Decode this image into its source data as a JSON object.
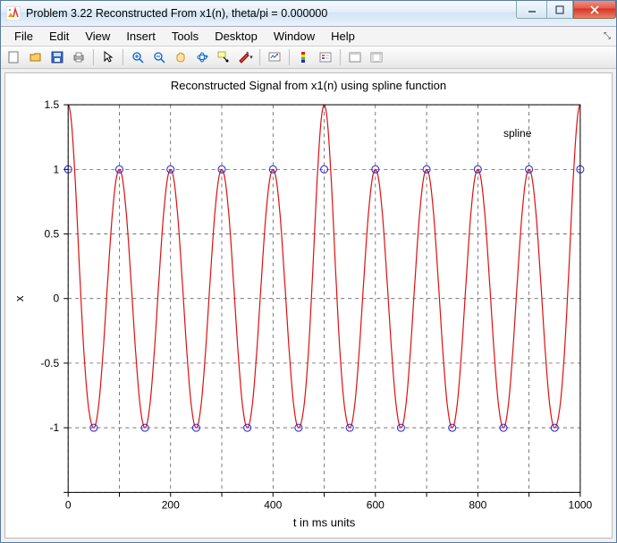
{
  "window": {
    "title": "Problem 3.22 Reconstructed From x1(n), theta/pi = 0.000000"
  },
  "menubar": {
    "items": [
      "File",
      "Edit",
      "View",
      "Insert",
      "Tools",
      "Desktop",
      "Window",
      "Help"
    ]
  },
  "toolbar": {
    "groups": [
      [
        "new-figure",
        "open",
        "save",
        "print"
      ],
      [
        "pointer"
      ],
      [
        "zoom-in",
        "zoom-out",
        "pan",
        "rotate3d",
        "data-cursor",
        "brush"
      ],
      [
        "link",
        "colorbar",
        "legend"
      ],
      [
        "hide-tools",
        "show-tools"
      ]
    ]
  },
  "chart": {
    "type": "line",
    "title": "Reconstructed Signal from x1(n) using spline function",
    "xlabel": "t in ms units",
    "ylabel": "x",
    "xlim": [
      0,
      1000
    ],
    "ylim": [
      -1.5,
      1.5
    ],
    "xticks": [
      0,
      200,
      400,
      600,
      800,
      1000
    ],
    "xminor": [
      100,
      300,
      500,
      700,
      900
    ],
    "yticks": [
      -1.5,
      -1,
      -0.5,
      0,
      0.5,
      1,
      1.5
    ],
    "yticklabels": [
      "",
      "-1",
      "-0.5",
      "0",
      "0.5",
      "1",
      "1.5"
    ],
    "grid_color": "#444444",
    "axis_color": "#000000",
    "background_color": "#ffffff",
    "signal": {
      "color": "#dd1111",
      "linewidth": 1.2,
      "period_ms": 100,
      "amplitude_pattern": [
        1.5,
        1.0,
        1.0,
        1.0,
        1.0,
        1.5,
        1.0,
        1.0,
        1.0,
        1.0,
        1.5
      ]
    },
    "markers": {
      "color": "#2222dd",
      "style": "circle",
      "size": 4,
      "points": [
        {
          "x": 0,
          "y": 1
        },
        {
          "x": 50,
          "y": -1
        },
        {
          "x": 100,
          "y": 1
        },
        {
          "x": 150,
          "y": -1
        },
        {
          "x": 200,
          "y": 1
        },
        {
          "x": 250,
          "y": -1
        },
        {
          "x": 300,
          "y": 1
        },
        {
          "x": 350,
          "y": -1
        },
        {
          "x": 400,
          "y": 1
        },
        {
          "x": 450,
          "y": -1
        },
        {
          "x": 500,
          "y": 1
        },
        {
          "x": 550,
          "y": -1
        },
        {
          "x": 600,
          "y": 1
        },
        {
          "x": 650,
          "y": -1
        },
        {
          "x": 700,
          "y": 1
        },
        {
          "x": 750,
          "y": -1
        },
        {
          "x": 800,
          "y": 1
        },
        {
          "x": 850,
          "y": -1
        },
        {
          "x": 900,
          "y": 1
        },
        {
          "x": 950,
          "y": -1
        },
        {
          "x": 1000,
          "y": 1
        }
      ]
    },
    "legend": {
      "label": "spline",
      "position": "northeast"
    },
    "title_fontsize": 13,
    "label_fontsize": 13,
    "tick_fontsize": 12
  },
  "colors": {
    "titlebar_grad": [
      "#f7fbff",
      "#d2e3f5"
    ],
    "close_btn": "#d6341f",
    "window_border": "#5a7ca0"
  }
}
